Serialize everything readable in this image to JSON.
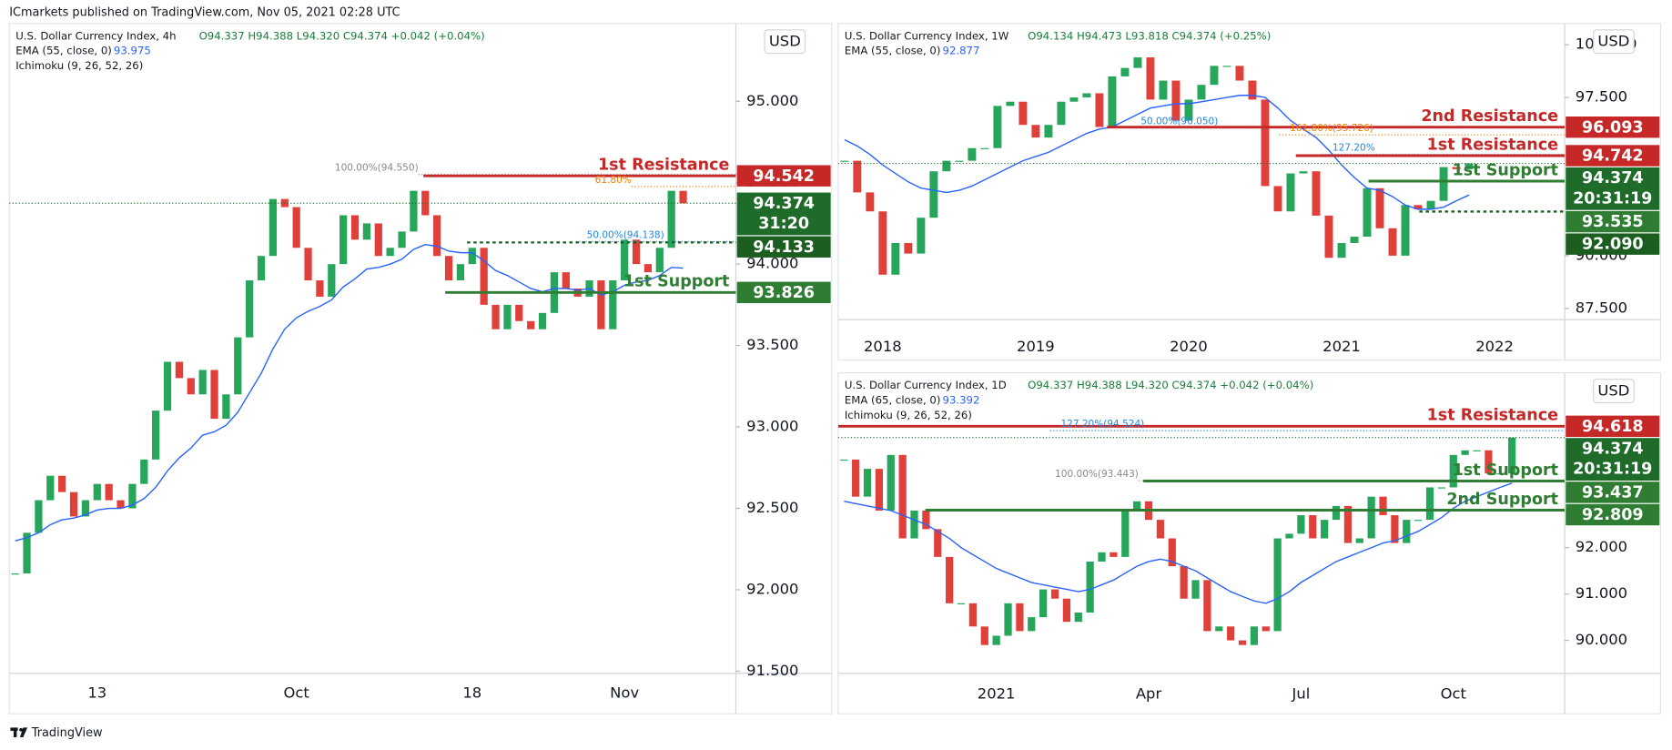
{
  "header": "ICmarkets published on TradingView.com, Nov 05, 2021 02:28 UTC",
  "footer": "TradingView",
  "chart_data": [
    {
      "type": "candlestick",
      "title": "U.S. Dollar Currency Index, 4h",
      "ohlc_text": "O94.337 H94.388 L94.320 C94.374 +0.042 (+0.04%)",
      "currency": "USD",
      "up_color": "#26a65b",
      "down_color": "#e0403a",
      "categories": [
        null,
        null,
        null,
        null,
        null,
        null,
        null,
        "13",
        null,
        null,
        null,
        null,
        null,
        null,
        null,
        null,
        null,
        null,
        null,
        null,
        null,
        null,
        null,
        null,
        "Oct",
        null,
        null,
        null,
        null,
        null,
        null,
        null,
        null,
        null,
        null,
        null,
        null,
        null,
        null,
        "18",
        null,
        null,
        null,
        null,
        null,
        null,
        null,
        null,
        null,
        null,
        null,
        null,
        "Nov",
        null,
        null,
        null,
        null,
        null,
        null,
        null,
        null,
        null
      ],
      "values": [
        92.1,
        92.35,
        92.55,
        92.7,
        92.6,
        92.45,
        92.55,
        92.65,
        92.55,
        92.5,
        92.65,
        92.8,
        93.1,
        93.4,
        93.3,
        93.2,
        93.35,
        93.05,
        93.2,
        93.55,
        93.9,
        94.05,
        94.4,
        94.35,
        94.1,
        93.9,
        93.8,
        94.0,
        94.3,
        94.15,
        94.25,
        94.05,
        94.1,
        94.2,
        94.45,
        94.3,
        94.05,
        93.9,
        94.0,
        94.1,
        93.75,
        93.6,
        93.75,
        93.65,
        93.6,
        93.7,
        93.95,
        93.85,
        93.8,
        93.9,
        93.6,
        93.9,
        94.15,
        94.0,
        93.95,
        94.1,
        94.45,
        94.374,
        null,
        null,
        null,
        null
      ],
      "indicators": [
        {
          "name": "EMA (55, close, 0)",
          "last": 93.975,
          "color": "#2962ff",
          "values": [
            92.3,
            92.32,
            92.35,
            92.4,
            92.43,
            92.44,
            92.46,
            92.49,
            92.5,
            92.5,
            92.52,
            92.56,
            92.63,
            92.73,
            92.81,
            92.87,
            92.95,
            92.97,
            93.01,
            93.09,
            93.21,
            93.33,
            93.48,
            93.6,
            93.67,
            93.71,
            93.74,
            93.78,
            93.86,
            93.91,
            93.97,
            93.98,
            94.0,
            94.03,
            94.09,
            94.12,
            94.11,
            94.08,
            94.07,
            94.07,
            94.02,
            93.96,
            93.93,
            93.89,
            93.85,
            93.83,
            93.85,
            93.85,
            93.84,
            93.85,
            93.81,
            93.83,
            93.87,
            93.89,
            93.9,
            93.93,
            93.98,
            93.975,
            null,
            null,
            null,
            null
          ]
        },
        {
          "name": "Ichimoku (9, 26, 52, 26)"
        }
      ],
      "ylim": [
        91.487,
        95.478
      ],
      "yticks": [
        {
          "value": 91.5,
          "label": "91.500"
        },
        {
          "value": 92,
          "label": "92.000"
        },
        {
          "value": 92.5,
          "label": "92.500"
        },
        {
          "value": 93,
          "label": "93.000"
        },
        {
          "value": 93.5,
          "label": "93.500"
        },
        {
          "value": 94,
          "label": "94.000"
        },
        {
          "value": 94.5,
          "label": "94.500"
        },
        {
          "value": 95,
          "label": "95.000"
        }
      ],
      "levels": [
        {
          "name": "1st Resistance",
          "value": 94.542,
          "color": "#c62828"
        },
        {
          "value": 94.133,
          "color": "#1b5e20"
        },
        {
          "name": "1st Support",
          "value": 93.826,
          "color": "#2e7d32"
        }
      ],
      "current": {
        "value": 94.374,
        "countdown": "31:20",
        "color": "#1e6b2a"
      },
      "fibs": [
        {
          "text": "100.00%(94.550)",
          "level": 94.55,
          "color": "#888888"
        },
        {
          "text": "61.80%",
          "level": 94.476,
          "color": "#f57c00"
        },
        {
          "text": "50.00%(94.138)",
          "level": 94.138,
          "color": "#1e88e5"
        }
      ]
    },
    {
      "type": "candlestick",
      "title": "U.S. Dollar Currency Index, 1W",
      "ohlc_text": "O94.134 H94.473 L93.818 C94.374 (+0.25%)",
      "currency": "USD",
      "up_color": "#26a65b",
      "down_color": "#e0403a",
      "categories": [
        null,
        null,
        null,
        "2018",
        null,
        null,
        null,
        null,
        null,
        null,
        null,
        null,
        null,
        null,
        null,
        "2019",
        null,
        null,
        null,
        null,
        null,
        null,
        null,
        null,
        null,
        null,
        null,
        "2020",
        null,
        null,
        null,
        null,
        null,
        null,
        null,
        null,
        null,
        null,
        null,
        "2021",
        null,
        null,
        null,
        null,
        null,
        null,
        null,
        null,
        null,
        null,
        null,
        "2022",
        null,
        null,
        null,
        null,
        null
      ],
      "values": [
        94.5,
        93.0,
        92.1,
        89.1,
        90.6,
        90.1,
        91.8,
        94.0,
        94.5,
        94.5,
        95.1,
        95.1,
        97.1,
        97.3,
        96.2,
        95.6,
        96.2,
        97.3,
        97.5,
        97.7,
        96.1,
        98.5,
        98.9,
        99.4,
        97.4,
        98.3,
        96.4,
        97.4,
        98.1,
        99.0,
        99.0,
        98.3,
        97.4,
        93.3,
        92.1,
        93.9,
        94.0,
        91.9,
        89.9,
        90.6,
        90.9,
        93.2,
        91.3,
        90.0,
        92.4,
        92.2,
        92.6,
        94.2,
        94.1,
        94.374,
        null,
        null,
        null,
        null,
        null,
        null,
        null
      ],
      "indicators": [
        {
          "name": "EMA (55, close, 0)",
          "last": 92.877,
          "color": "#2962ff",
          "values": [
            95.5,
            95.2,
            94.8,
            94.3,
            93.9,
            93.5,
            93.2,
            93.1,
            93.0,
            93.1,
            93.3,
            93.6,
            93.9,
            94.2,
            94.5,
            94.7,
            94.9,
            95.2,
            95.5,
            95.8,
            96.0,
            96.1,
            96.4,
            96.7,
            97.0,
            97.1,
            97.2,
            97.2,
            97.3,
            97.4,
            97.5,
            97.6,
            97.6,
            97.5,
            97.0,
            96.4,
            96.0,
            95.6,
            95.0,
            94.3,
            93.7,
            93.2,
            93.1,
            92.8,
            92.4,
            92.2,
            92.2,
            92.3,
            92.6,
            92.877,
            null,
            null,
            null,
            null,
            null,
            null,
            null
          ]
        }
      ],
      "ylim": [
        86.97,
        101.01
      ],
      "yticks": [
        {
          "value": 87.5,
          "label": "87.500"
        },
        {
          "value": 90,
          "label": "90.000"
        },
        {
          "value": 97.5,
          "label": "97.500"
        },
        {
          "value": 100,
          "label": "100.000"
        }
      ],
      "levels": [
        {
          "name": "2nd Resistance",
          "value": 96.093,
          "color": "#c62828"
        },
        {
          "name": "1st Resistance",
          "value": 94.742,
          "color": "#c62828"
        },
        {
          "name": "1st Support",
          "value": 93.535,
          "color": "#2e7d32"
        },
        {
          "value": 92.09,
          "label": "92.090",
          "color": "#1b5e20"
        }
      ],
      "current": {
        "value": 94.374,
        "countdown": "20:31:19",
        "color": "#1e6b2a"
      },
      "fibs": [
        {
          "text": "161.80%(95.726)",
          "level": 95.726,
          "color": "#f57c00"
        },
        {
          "text": "50.00%(96.050)",
          "level": 96.05,
          "color": "#1e88e5"
        },
        {
          "text": "127.20%",
          "level": 94.8,
          "color": "#1e88e5"
        }
      ]
    },
    {
      "type": "candlestick",
      "title": "U.S. Dollar Currency Index, 1D",
      "ohlc_text": "O94.337 H94.388 L94.320 C94.374 +0.042 (+0.04%)",
      "currency": "USD",
      "up_color": "#26a65b",
      "down_color": "#e0403a",
      "categories": [
        null,
        null,
        null,
        null,
        null,
        null,
        null,
        null,
        null,
        null,
        null,
        null,
        null,
        "2021",
        null,
        null,
        null,
        null,
        null,
        null,
        null,
        null,
        null,
        null,
        null,
        null,
        "Apr",
        null,
        null,
        null,
        null,
        null,
        null,
        null,
        null,
        null,
        null,
        null,
        null,
        "Jul",
        null,
        null,
        null,
        null,
        null,
        null,
        null,
        null,
        null,
        null,
        null,
        null,
        "Oct",
        null,
        null,
        null,
        null,
        null,
        null,
        null,
        null,
        null
      ],
      "values": [
        93.9,
        93.1,
        93.7,
        92.8,
        94.0,
        92.2,
        92.8,
        92.4,
        91.8,
        90.8,
        90.8,
        90.3,
        89.9,
        90.1,
        90.8,
        90.2,
        90.5,
        91.1,
        90.9,
        90.4,
        90.6,
        91.7,
        91.9,
        91.8,
        92.8,
        93.0,
        92.6,
        92.2,
        91.6,
        90.9,
        91.3,
        90.2,
        90.3,
        90.0,
        89.9,
        90.3,
        90.2,
        92.2,
        92.3,
        92.7,
        92.2,
        92.6,
        92.9,
        92.1,
        92.2,
        93.1,
        92.7,
        92.1,
        92.6,
        92.6,
        93.3,
        93.3,
        94.0,
        94.1,
        94.1,
        93.6,
        93.6,
        94.374,
        null,
        null,
        null,
        null
      ],
      "indicators": [
        {
          "name": "EMA (65, close, 0)",
          "last": 93.392,
          "color": "#2962ff",
          "values": [
            93.0,
            92.95,
            92.9,
            92.85,
            92.8,
            92.7,
            92.6,
            92.5,
            92.35,
            92.2,
            92.0,
            91.85,
            91.7,
            91.55,
            91.45,
            91.35,
            91.25,
            91.2,
            91.15,
            91.1,
            91.05,
            91.1,
            91.2,
            91.3,
            91.45,
            91.6,
            91.7,
            91.75,
            91.7,
            91.6,
            91.5,
            91.35,
            91.2,
            91.05,
            90.95,
            90.85,
            90.8,
            90.9,
            91.05,
            91.25,
            91.4,
            91.55,
            91.7,
            91.8,
            91.9,
            92.0,
            92.1,
            92.15,
            92.25,
            92.35,
            92.5,
            92.65,
            92.85,
            93.0,
            93.1,
            93.2,
            93.3,
            93.392,
            null,
            null,
            null,
            null
          ]
        },
        {
          "name": "Ichimoku (9, 26, 52, 26)"
        }
      ],
      "ylim": [
        89.29,
        95.77
      ],
      "yticks": [
        {
          "value": 90,
          "label": "90.000"
        },
        {
          "value": 91,
          "label": "91.000"
        },
        {
          "value": 92,
          "label": "92.000"
        }
      ],
      "levels": [
        {
          "name": "1st Resistance",
          "value": 94.618,
          "color": "#c62828"
        },
        {
          "name": "1st Support",
          "value": 93.437,
          "color": "#2e7d32"
        },
        {
          "name": "2nd Support",
          "value": 92.809,
          "color": "#2e7d32"
        }
      ],
      "current": {
        "value": 94.374,
        "countdown": "20:31:19",
        "color": "#1e6b2a"
      },
      "fibs": [
        {
          "text": "127.20%(94.524)",
          "level": 94.524,
          "color": "#1e88e5"
        },
        {
          "text": "100.00%(93.443)",
          "level": 93.443,
          "color": "#888888"
        }
      ]
    }
  ]
}
